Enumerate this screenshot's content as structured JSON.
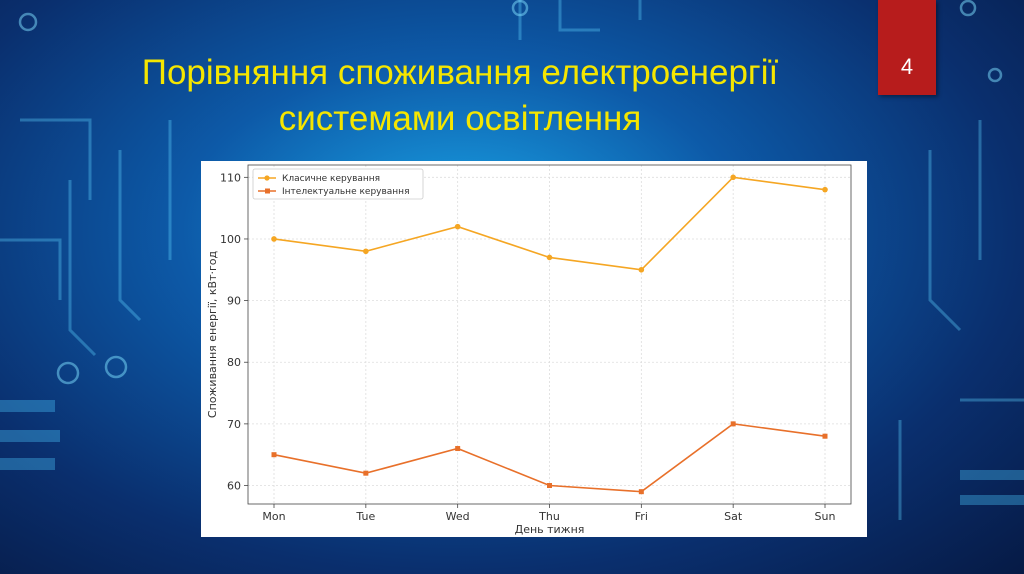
{
  "slide": {
    "title_line1": "Порівняння споживання електроенергії",
    "title_line2": "системами освітлення",
    "page_number": "4"
  },
  "colors": {
    "title": "#f5e600",
    "badge": "#b71c1c",
    "series_classic": "#f5a623",
    "series_smart": "#e8702a"
  },
  "chart_data": {
    "type": "line",
    "categories": [
      "Mon",
      "Tue",
      "Wed",
      "Thu",
      "Fri",
      "Sat",
      "Sun"
    ],
    "series": [
      {
        "name": "Класичне керування",
        "values": [
          100,
          98,
          102,
          97,
          95,
          110,
          108
        ],
        "marker": "circle"
      },
      {
        "name": "Інтелектуальне керування",
        "values": [
          65,
          62,
          66,
          60,
          59,
          70,
          68
        ],
        "marker": "square"
      }
    ],
    "xlabel": "День тижня",
    "ylabel": "Споживання енергії, кВт·год",
    "ylim": [
      57,
      112
    ],
    "yticks": [
      60,
      70,
      80,
      90,
      100,
      110
    ],
    "grid": true,
    "legend_position": "top-left"
  }
}
